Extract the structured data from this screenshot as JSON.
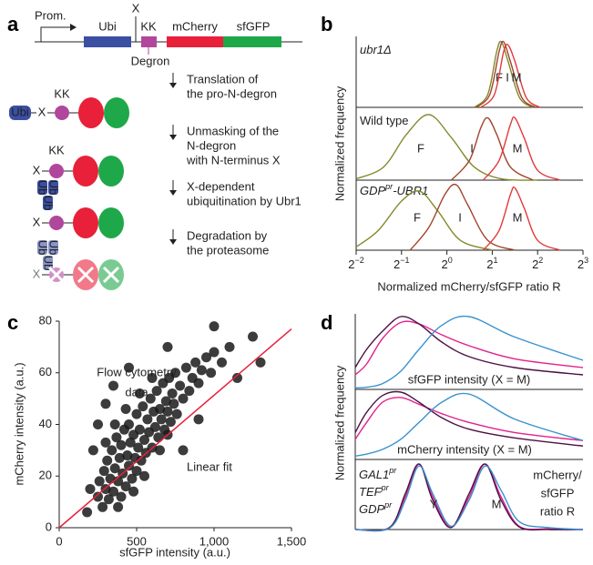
{
  "panel_labels": [
    "a",
    "b",
    "c",
    "d"
  ],
  "diagram": {
    "construct": {
      "promoter": "Prom.",
      "ubi": "Ubi",
      "x": "X",
      "kk": "KK",
      "mcherry": "mCherry",
      "sfgfp": "sfGFP",
      "degron": "Degron",
      "ub": "Ub"
    },
    "steps": [
      [
        "Translation of",
        "the pro-N-degron"
      ],
      [
        "Unmasking of the",
        "N-degron",
        "with N-terminus X"
      ],
      [
        "X-dependent",
        "ubiquitination by Ubr1"
      ],
      [
        "Degradation by",
        "the proteasome"
      ]
    ]
  },
  "chart_data": [
    {
      "type": "density_stack",
      "xlabel": "Normalized mCherry/sfGFP ratio R",
      "ylabel": "Normalized frequency",
      "xscale": "log2",
      "xlim": [
        0.25,
        8
      ],
      "xticks": [
        {
          "value": 0.25,
          "label": "2",
          "sup": "−2"
        },
        {
          "value": 0.5,
          "label": "2",
          "sup": "−1"
        },
        {
          "value": 1,
          "label": "2",
          "sup": "0"
        },
        {
          "value": 2,
          "label": "2",
          "sup": "1"
        },
        {
          "value": 4,
          "label": "2",
          "sup": "2"
        },
        {
          "value": 8,
          "label": "2",
          "sup": "3"
        }
      ],
      "ylim": [
        0,
        1
      ],
      "subpanels": [
        {
          "title": [
            "ubr1Δ"
          ],
          "series": [
            {
              "name": "F",
              "color": "#84892c",
              "x": [
                1.52,
                1.87,
                2.14,
                2.3,
                2.55,
                3.03,
                3.73
              ],
              "values": [
                0,
                0.2,
                0.85,
                1,
                0.7,
                0.15,
                0
              ]
            },
            {
              "name": "I",
              "color": "#a0452a",
              "x": [
                1.57,
                1.93,
                2.22,
                2.38,
                2.64,
                3.14,
                3.86
              ],
              "values": [
                0,
                0.2,
                0.85,
                1,
                0.7,
                0.15,
                0
              ]
            },
            {
              "name": "M",
              "color": "#e23a3a",
              "x": [
                1.68,
                2.07,
                2.38,
                2.55,
                2.83,
                3.36,
                4.14
              ],
              "values": [
                0,
                0.2,
                0.85,
                0.95,
                0.7,
                0.15,
                0
              ]
            }
          ]
        },
        {
          "title": [
            "Wild type"
          ],
          "series": [
            {
              "name": "F",
              "color": "#84892c",
              "x": [
                0.25,
                0.38,
                0.54,
                0.76,
                1.07,
                1.52,
                2.3,
                4.0
              ],
              "values": [
                0.02,
                0.2,
                0.7,
                1,
                0.65,
                0.2,
                0.02,
                0
              ]
            },
            {
              "name": "I",
              "color": "#a0452a",
              "x": [
                1.07,
                1.41,
                1.68,
                1.87,
                2.14,
                2.64,
                3.73
              ],
              "values": [
                0,
                0.3,
                0.8,
                0.95,
                0.7,
                0.2,
                0
              ]
            },
            {
              "name": "M",
              "color": "#e23a3a",
              "x": [
                1.74,
                2.22,
                2.64,
                2.83,
                3.25,
                4.0,
                5.66
              ],
              "values": [
                0,
                0.3,
                0.85,
                0.95,
                0.65,
                0.15,
                0
              ]
            }
          ]
        },
        {
          "title": [
            "GDP",
            "pr",
            "-UBR1"
          ],
          "series": [
            {
              "name": "F",
              "color": "#84892c",
              "x": [
                0.25,
                0.35,
                0.5,
                0.66,
                0.87,
                1.23,
                2.0
              ],
              "values": [
                0.05,
                0.3,
                0.75,
                0.9,
                0.6,
                0.15,
                0
              ]
            },
            {
              "name": "I",
              "color": "#a0452a",
              "x": [
                0.57,
                0.76,
                0.97,
                1.15,
                1.37,
                1.87,
                2.83
              ],
              "values": [
                0,
                0.35,
                0.85,
                1,
                0.7,
                0.15,
                0
              ]
            },
            {
              "name": "M",
              "color": "#e23a3a",
              "x": [
                1.74,
                2.22,
                2.64,
                2.83,
                3.25,
                4.0,
                5.66
              ],
              "values": [
                0,
                0.3,
                0.85,
                0.95,
                0.65,
                0.15,
                0
              ]
            }
          ]
        }
      ]
    },
    {
      "type": "scatter",
      "xlabel": "sfGFP intensity (a.u.)",
      "ylabel": "mCherry intensity (a.u.)",
      "annotation": [
        "Flow cytometry",
        "data"
      ],
      "xlim": [
        0,
        1500
      ],
      "ylim": [
        0,
        80
      ],
      "xticks": [
        0,
        500,
        {
          "value": 1000,
          "label": "1,000"
        },
        {
          "value": 1500,
          "label": "1,500"
        }
      ],
      "yticks": [
        0,
        20,
        40,
        60,
        80
      ],
      "color": "#1a1a1a",
      "x": [
        250,
        260,
        280,
        290,
        300,
        310,
        320,
        330,
        340,
        350,
        360,
        370,
        380,
        390,
        400,
        400,
        410,
        420,
        430,
        440,
        450,
        450,
        460,
        470,
        480,
        490,
        500,
        500,
        510,
        520,
        530,
        540,
        550,
        560,
        570,
        580,
        590,
        600,
        610,
        620,
        630,
        640,
        650,
        660,
        670,
        680,
        690,
        700,
        710,
        720,
        730,
        740,
        750,
        760,
        780,
        800,
        820,
        840,
        860,
        880,
        900,
        920,
        950,
        980,
        1000,
        1050,
        430,
        360,
        520,
        600,
        300,
        550,
        650,
        700,
        480,
        380,
        180,
        220,
        350,
        300,
        800,
        900,
        1100,
        1150,
        1250,
        200,
        700,
        1000,
        1300,
        450,
        250
      ],
      "values": [
        12,
        18,
        8,
        22,
        15,
        26,
        11,
        19,
        30,
        14,
        23,
        35,
        18,
        27,
        12,
        32,
        21,
        38,
        16,
        28,
        24,
        40,
        33,
        19,
        36,
        27,
        44,
        22,
        31,
        38,
        26,
        47,
        34,
        29,
        42,
        37,
        50,
        31,
        45,
        39,
        53,
        35,
        46,
        42,
        56,
        38,
        49,
        45,
        58,
        41,
        52,
        48,
        60,
        44,
        55,
        50,
        62,
        53,
        58,
        64,
        56,
        61,
        66,
        60,
        68,
        64,
        46,
        40,
        52,
        58,
        33,
        20,
        30,
        36,
        14,
        8,
        6,
        30,
        55,
        48,
        30,
        42,
        70,
        58,
        74,
        15,
        70,
        78,
        64,
        62,
        40
      ],
      "fit": {
        "name": "Linear fit",
        "color": "#e8203a",
        "x": [
          0,
          1500
        ],
        "values": [
          0,
          77
        ]
      }
    },
    {
      "type": "density_stack",
      "ylabel": "Normalized frequency",
      "xlim": [
        0,
        100
      ],
      "ylim": [
        0,
        1
      ],
      "legend": [
        {
          "name": [
            "GAL1",
            "pr"
          ],
          "color": "#e3218d"
        },
        {
          "name": [
            "TEF",
            "pr"
          ],
          "color": "#4b1245"
        },
        {
          "name": [
            "GDP",
            "pr"
          ],
          "color": "#3a93cf"
        }
      ],
      "subpanels": [
        {
          "caption": [
            "sfGFP intensity (X = M)"
          ],
          "x": [
            0,
            5,
            12,
            20,
            28,
            38,
            50,
            70,
            100
          ],
          "series": [
            {
              "values": [
                0.2,
                0.35,
                0.7,
                0.92,
                0.9,
                0.75,
                0.6,
                0.42,
                0.3
              ]
            },
            {
              "values": [
                0.3,
                0.55,
                0.8,
                1,
                0.9,
                0.65,
                0.45,
                0.3,
                0.2
              ]
            },
            {
              "values": [
                0.02,
                0.03,
                0.08,
                0.25,
                0.55,
                0.88,
                1,
                0.72,
                0.4
              ]
            }
          ]
        },
        {
          "caption": [
            "mCherry intensity (X = M)"
          ],
          "x": [
            0,
            5,
            12,
            20,
            28,
            38,
            50,
            70,
            100
          ],
          "series": [
            {
              "values": [
                0.3,
                0.55,
                0.85,
                0.92,
                0.82,
                0.68,
                0.55,
                0.4,
                0.28
              ]
            },
            {
              "values": [
                0.4,
                0.7,
                0.95,
                1,
                0.85,
                0.62,
                0.45,
                0.32,
                0.2
              ]
            },
            {
              "values": [
                0.05,
                0.08,
                0.15,
                0.3,
                0.55,
                0.85,
                0.97,
                0.6,
                0.28
              ]
            }
          ]
        },
        {
          "caption": [
            "mCherry/",
            "sfGFP",
            "ratio R"
          ],
          "peak_labels": [
            "Y",
            "M"
          ],
          "x": [
            0,
            15,
            22,
            28,
            34,
            42,
            50,
            57,
            64,
            72,
            85,
            100
          ],
          "series": [
            {
              "values": [
                0,
                0.02,
                0.5,
                1,
                0.5,
                0.03,
                0.5,
                1,
                0.5,
                0.05,
                0.01,
                0
              ]
            },
            {
              "values": [
                0,
                0.03,
                0.55,
                1,
                0.45,
                0.03,
                0.55,
                1,
                0.45,
                0.04,
                0,
                0
              ]
            },
            {
              "values": [
                0,
                0.02,
                0.45,
                0.97,
                0.55,
                0.05,
                0.45,
                0.97,
                0.6,
                0.12,
                0.03,
                0
              ]
            }
          ]
        }
      ]
    }
  ]
}
